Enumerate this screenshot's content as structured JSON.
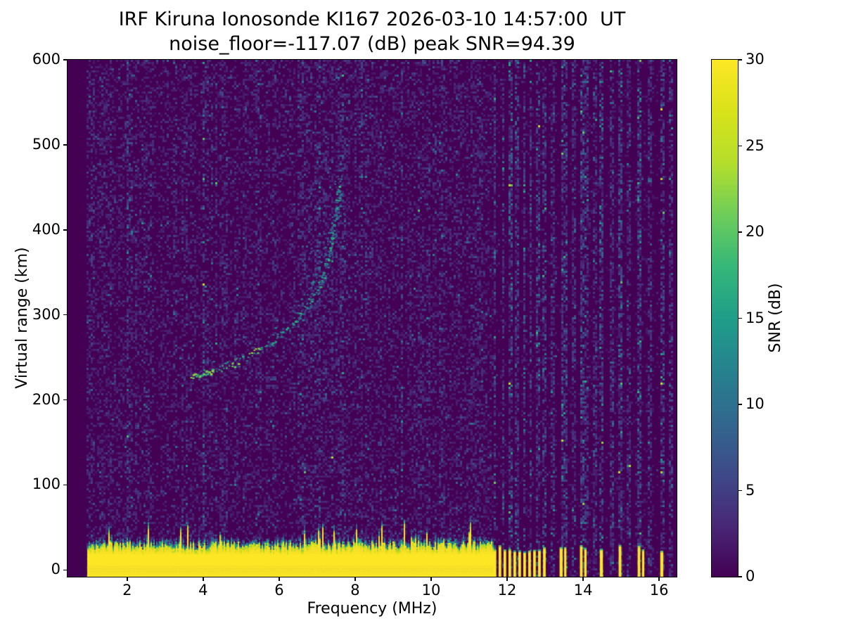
{
  "chart_data": {
    "type": "heatmap",
    "title": "IRF Kiruna Ionosonde KI167 2026-03-10 14:57:00  UT",
    "subtitle": "noise_floor=-117.07 (dB) peak SNR=94.39",
    "xlabel": "Frequency (MHz)",
    "ylabel": "Virtual range (km)",
    "xlim": [
      0.43,
      16.46
    ],
    "ylim": [
      -8,
      600
    ],
    "xticks": [
      2,
      4,
      6,
      8,
      10,
      12,
      14,
      16
    ],
    "yticks": [
      0,
      100,
      200,
      300,
      400,
      500,
      600
    ],
    "grid": false,
    "legend": false,
    "colorbar": {
      "label": "SNR (dB)",
      "min": 0,
      "max": 30,
      "ticks": [
        0,
        5,
        10,
        15,
        20,
        25,
        30
      ],
      "colormap": "viridis",
      "position": "right"
    },
    "colormap_stops": [
      [
        0.0,
        "#440154"
      ],
      [
        0.1,
        "#482878"
      ],
      [
        0.2,
        "#3e4a89"
      ],
      [
        0.3,
        "#31688e"
      ],
      [
        0.4,
        "#26828e"
      ],
      [
        0.5,
        "#1f9e89"
      ],
      [
        0.6,
        "#35b779"
      ],
      [
        0.7,
        "#6dcd59"
      ],
      [
        0.8,
        "#b4de2c"
      ],
      [
        0.9,
        "#d8e219"
      ],
      [
        1.0,
        "#fde725"
      ]
    ],
    "background_color": "#440154",
    "data_extent": {
      "freq_mhz": [
        0.95,
        16.38
      ],
      "range_km": [
        -8,
        600
      ]
    },
    "noise_level_db": {
      "background_mean": 1.2,
      "right_side_mean": 0.5
    },
    "ground_clutter": {
      "freq_mhz": [
        0.95,
        11.62
      ],
      "top_km_mean": 30,
      "top_km_max_spikes": 50,
      "snr_db": 30
    },
    "clutter_columns": [
      [
        11.68,
        0.07
      ],
      [
        11.81,
        0.07
      ],
      [
        11.94,
        0.07
      ],
      [
        12.07,
        0.07
      ],
      [
        12.2,
        0.07
      ],
      [
        12.33,
        0.07
      ],
      [
        12.46,
        0.07
      ],
      [
        12.59,
        0.07
      ],
      [
        12.72,
        0.07
      ],
      [
        12.85,
        0.07
      ],
      [
        12.98,
        0.07
      ],
      [
        13.42,
        0.08
      ],
      [
        13.53,
        0.06
      ],
      [
        13.95,
        0.07
      ],
      [
        14.06,
        0.06
      ],
      [
        14.48,
        0.08
      ],
      [
        14.97,
        0.07
      ],
      [
        15.47,
        0.07
      ],
      [
        15.58,
        0.06
      ],
      [
        16.07,
        0.08
      ]
    ],
    "rfi_stripes": [
      [
        11.68,
        2.6
      ],
      [
        11.9,
        2.2
      ],
      [
        12.1,
        2.8
      ],
      [
        12.28,
        2.2
      ],
      [
        12.45,
        2.6
      ],
      [
        12.62,
        2.2
      ],
      [
        12.8,
        2.4
      ],
      [
        12.98,
        2.2
      ],
      [
        13.2,
        1.9
      ],
      [
        13.45,
        2.7
      ],
      [
        13.55,
        2.2
      ],
      [
        13.75,
        1.9
      ],
      [
        13.97,
        2.6
      ],
      [
        14.07,
        2.0
      ],
      [
        14.3,
        1.9
      ],
      [
        14.5,
        2.6
      ],
      [
        14.75,
        1.9
      ],
      [
        14.97,
        2.5
      ],
      [
        15.2,
        1.9
      ],
      [
        15.5,
        2.6
      ],
      [
        15.75,
        1.9
      ],
      [
        16.08,
        2.5
      ],
      [
        16.3,
        2.0
      ]
    ],
    "echo_trace_main": [
      [
        3.7,
        229
      ],
      [
        4.0,
        231
      ],
      [
        4.3,
        235
      ],
      [
        4.6,
        240
      ],
      [
        4.9,
        246
      ],
      [
        5.2,
        253
      ],
      [
        5.5,
        261
      ],
      [
        5.8,
        270
      ],
      [
        6.1,
        281
      ],
      [
        6.4,
        294
      ],
      [
        6.7,
        310
      ],
      [
        6.9,
        324
      ],
      [
        7.1,
        342
      ],
      [
        7.25,
        362
      ],
      [
        7.35,
        382
      ],
      [
        7.45,
        408
      ],
      [
        7.52,
        432
      ],
      [
        7.57,
        455
      ]
    ],
    "echo_trace_second": [
      [
        6.35,
        302
      ],
      [
        6.55,
        315
      ],
      [
        6.75,
        330
      ],
      [
        6.95,
        348
      ],
      [
        7.15,
        370
      ],
      [
        7.3,
        392
      ],
      [
        7.45,
        418
      ],
      [
        7.55,
        440
      ],
      [
        7.62,
        462
      ]
    ],
    "echo_trace_snr_db": {
      "main_max": 24,
      "second_max": 14
    }
  }
}
